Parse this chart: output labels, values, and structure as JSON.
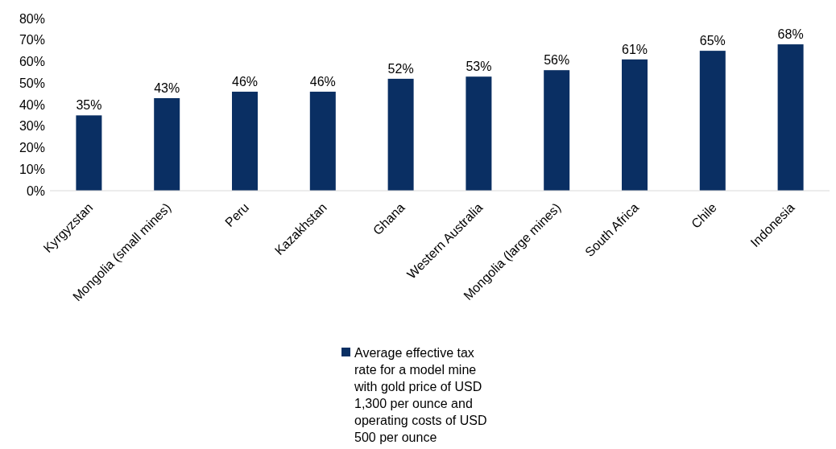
{
  "chart_data": {
    "type": "bar",
    "categories": [
      "Kyrgyzstan",
      "Mongolia (small mines)",
      "Peru",
      "Kazakhstan",
      "Ghana",
      "Western Australia",
      "Mongolia (large mines)",
      "South Africa",
      "Chile",
      "Indonesia"
    ],
    "series": [
      {
        "name": "Average effective tax rate for a model mine with gold price of USD 1,300 per ounce and operating costs of USD 500 per ounce",
        "color": "#0a2f63",
        "values": [
          35,
          43,
          46,
          46,
          52,
          53,
          56,
          61,
          65,
          68
        ],
        "value_labels": [
          "35%",
          "43%",
          "46%",
          "46%",
          "52%",
          "53%",
          "56%",
          "61%",
          "65%",
          "68%"
        ]
      }
    ],
    "ylim": [
      0,
      80
    ],
    "yticks": [
      {
        "value": 0,
        "label": "0%"
      },
      {
        "value": 10,
        "label": "10%"
      },
      {
        "value": 20,
        "label": "20%"
      },
      {
        "value": 30,
        "label": "30%"
      },
      {
        "value": 40,
        "label": "40%"
      },
      {
        "value": 50,
        "label": "50%"
      },
      {
        "value": 60,
        "label": "60%"
      },
      {
        "value": 70,
        "label": "70%"
      },
      {
        "value": 80,
        "label": "80%"
      }
    ],
    "legend": "bottom"
  }
}
